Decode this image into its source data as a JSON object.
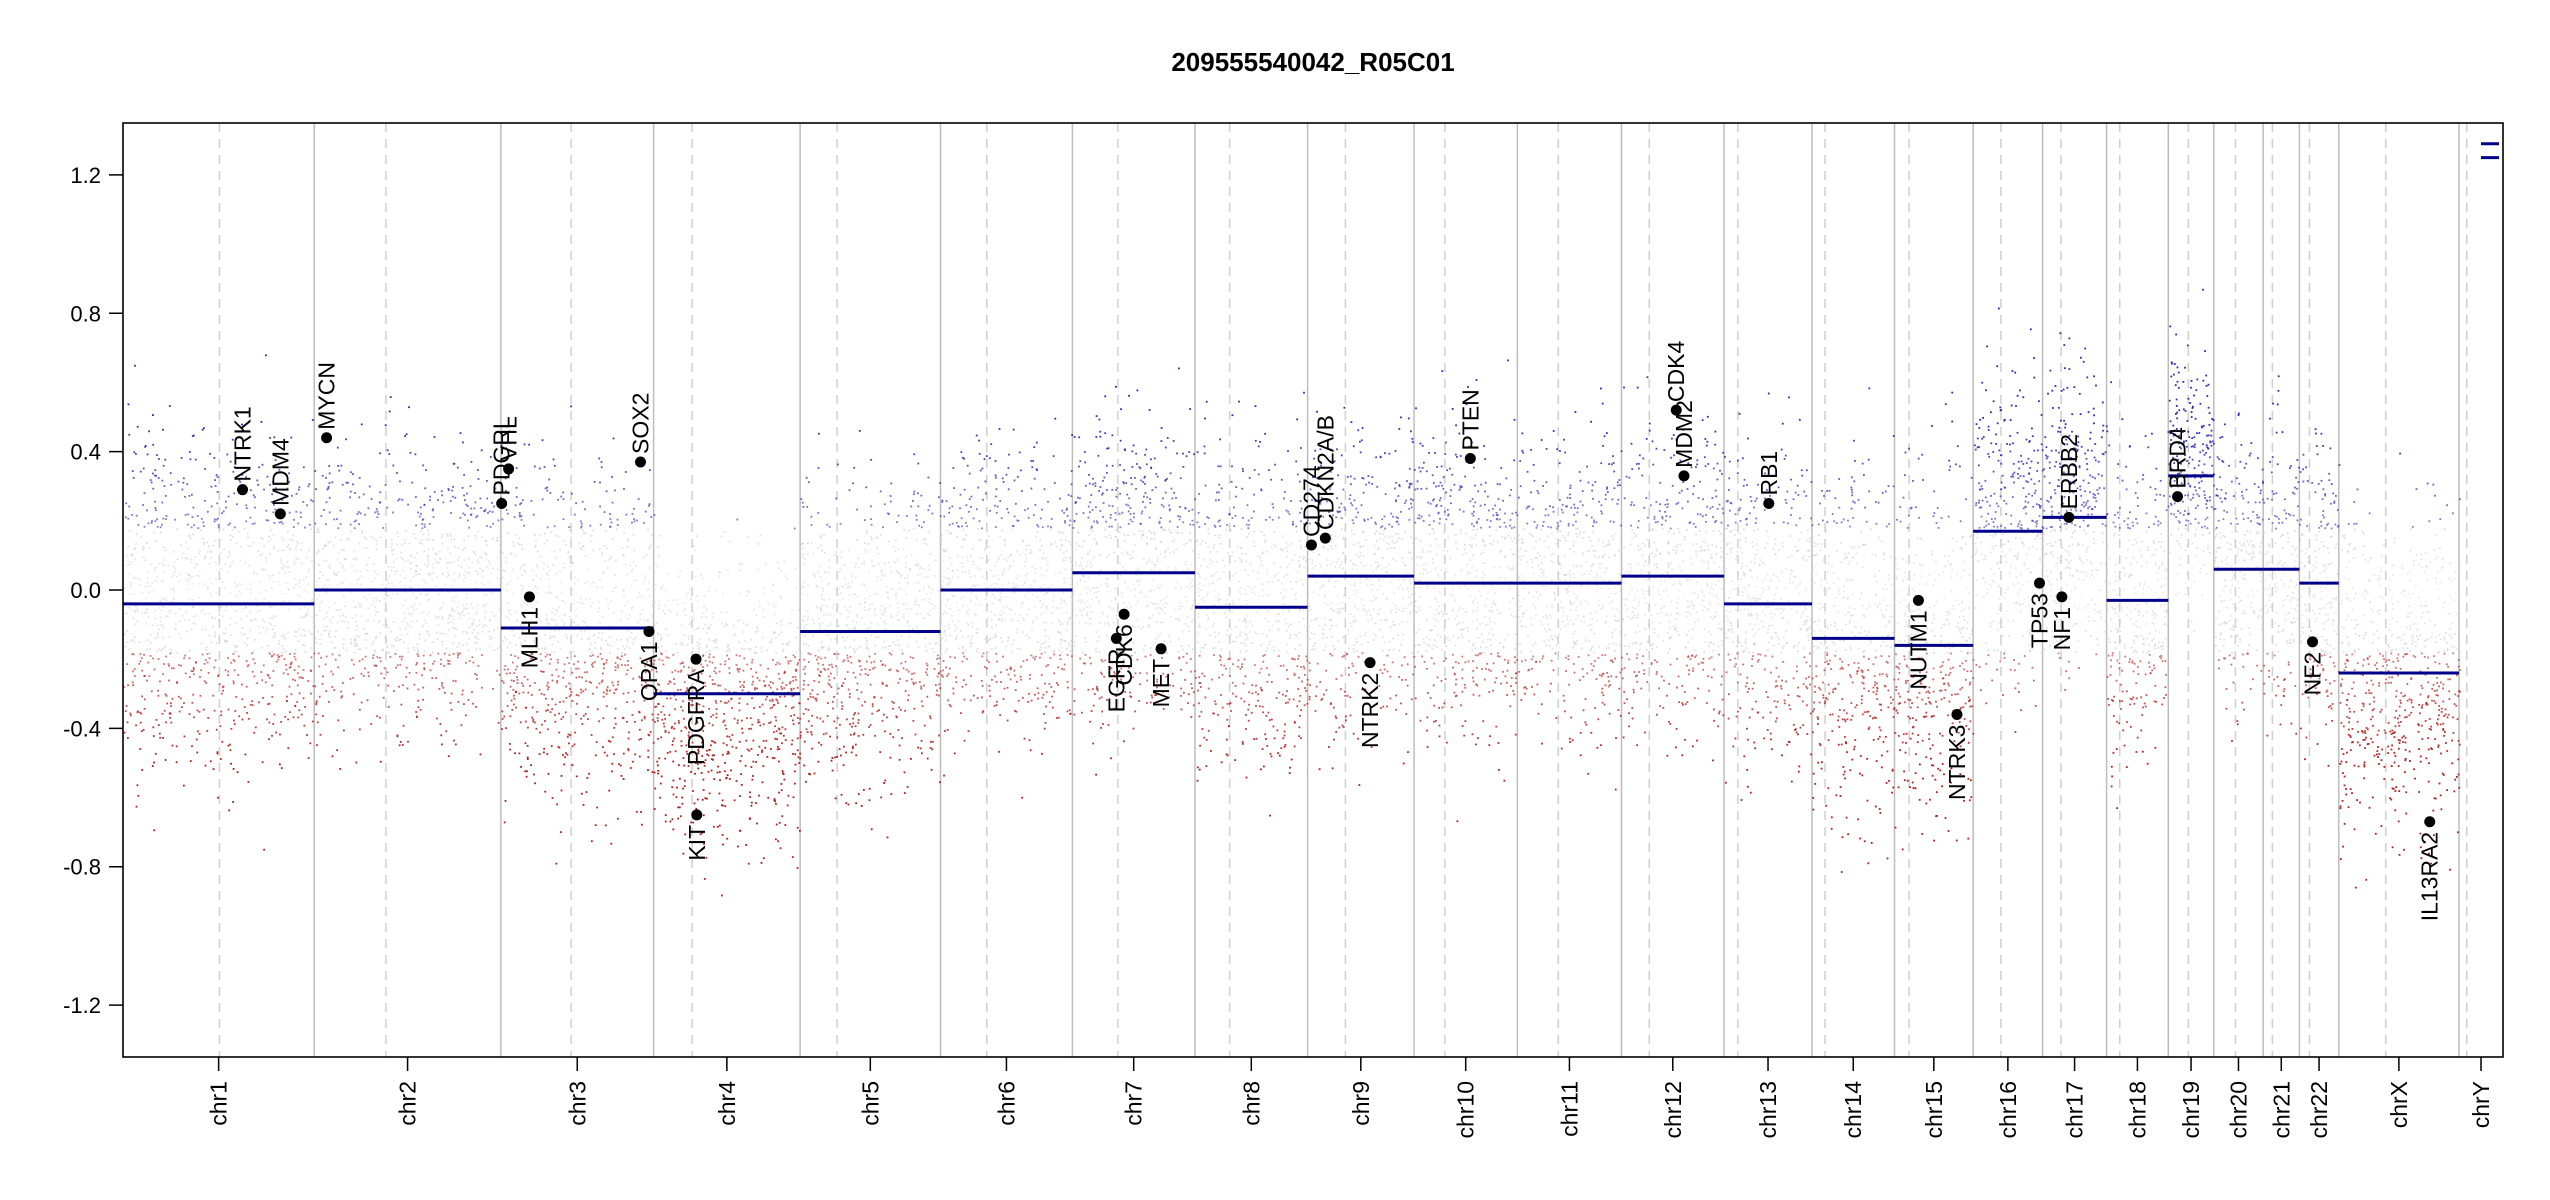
{
  "chart_data": {
    "type": "scatter",
    "title": "209555540042_R05C01",
    "xlabel": "",
    "ylabel": "",
    "ylim": [
      -1.35,
      1.35
    ],
    "yticks": [
      -1.2,
      -0.8,
      -0.4,
      0.0,
      0.4,
      0.8,
      1.2
    ],
    "ytick_labels": [
      "-1.2",
      "-0.8",
      "-0.4",
      "0.0",
      "0.4",
      "0.8",
      "1.2"
    ],
    "grid": "chromosome boundaries solid, centromeres dashed",
    "point_colors": {
      "gain": "#2b2bb0",
      "neutral": "#c8c8c8",
      "loss": "#b01e1e"
    },
    "segment_color": "#00008b",
    "chromosomes": [
      {
        "name": "chr1",
        "start": 0,
        "end": 248,
        "centromere": 125,
        "segment": -0.04,
        "noise": 0.24
      },
      {
        "name": "chr2",
        "start": 248,
        "end": 490,
        "centromere": 341,
        "segment": 0.0,
        "noise": 0.2
      },
      {
        "name": "chr3",
        "start": 490,
        "end": 688,
        "centromere": 581,
        "segment": -0.11,
        "noise": 0.24
      },
      {
        "name": "chr4",
        "start": 688,
        "end": 878,
        "centromere": 738,
        "segment": -0.3,
        "noise": 0.22
      },
      {
        "name": "chr5",
        "start": 878,
        "end": 1060,
        "centromere": 926,
        "segment": -0.12,
        "noise": 0.22
      },
      {
        "name": "chr6",
        "start": 1060,
        "end": 1231,
        "centromere": 1120,
        "segment": 0.0,
        "noise": 0.2
      },
      {
        "name": "chr7",
        "start": 1231,
        "end": 1390,
        "centromere": 1290,
        "segment": 0.05,
        "noise": 0.22
      },
      {
        "name": "chr8",
        "start": 1390,
        "end": 1536,
        "centromere": 1435,
        "segment": -0.05,
        "noise": 0.22
      },
      {
        "name": "chr9",
        "start": 1536,
        "end": 1674,
        "centromere": 1585,
        "segment": 0.04,
        "noise": 0.22
      },
      {
        "name": "chr10",
        "start": 1674,
        "end": 1808,
        "centromere": 1714,
        "segment": 0.02,
        "noise": 0.22
      },
      {
        "name": "chr11",
        "start": 1808,
        "end": 1943,
        "centromere": 1861,
        "segment": 0.02,
        "noise": 0.2
      },
      {
        "name": "chr12",
        "start": 1943,
        "end": 2076,
        "centromere": 1979,
        "segment": 0.04,
        "noise": 0.22
      },
      {
        "name": "chr13",
        "start": 2076,
        "end": 2190,
        "centromere": 2094,
        "segment": -0.04,
        "noise": 0.22
      },
      {
        "name": "chr14",
        "start": 2190,
        "end": 2297,
        "centromere": 2207,
        "segment": -0.14,
        "noise": 0.26
      },
      {
        "name": "chr15",
        "start": 2297,
        "end": 2399,
        "centromere": 2316,
        "segment": -0.16,
        "noise": 0.26
      },
      {
        "name": "chr16",
        "start": 2399,
        "end": 2489,
        "centromere": 2435,
        "segment": 0.17,
        "noise": 0.22
      },
      {
        "name": "chr17",
        "start": 2489,
        "end": 2572,
        "centromere": 2513,
        "segment": 0.21,
        "noise": 0.22
      },
      {
        "name": "chr18",
        "start": 2572,
        "end": 2652,
        "centromere": 2589,
        "segment": -0.03,
        "noise": 0.22
      },
      {
        "name": "chr19",
        "start": 2652,
        "end": 2711,
        "centromere": 2678,
        "segment": 0.33,
        "noise": 0.18
      },
      {
        "name": "chr20",
        "start": 2711,
        "end": 2775,
        "centromere": 2739,
        "segment": 0.06,
        "noise": 0.2
      },
      {
        "name": "chr21",
        "start": 2775,
        "end": 2822,
        "centromere": 2787,
        "segment": 0.06,
        "noise": 0.2
      },
      {
        "name": "chr22",
        "start": 2822,
        "end": 2873,
        "centromere": 2835,
        "segment": 0.02,
        "noise": 0.22
      },
      {
        "name": "chrX",
        "start": 2873,
        "end": 3029,
        "centromere": 2934,
        "segment": -0.24,
        "noise": 0.24
      },
      {
        "name": "chrY",
        "start": 3029,
        "end": 3086,
        "centromere": 3039,
        "segment": 1.27,
        "noise": 0.0
      }
    ],
    "genes": [
      {
        "name": "NTRK1",
        "x": 155,
        "y": 0.29
      },
      {
        "name": "MDM4",
        "x": 204,
        "y": 0.22
      },
      {
        "name": "MYCN",
        "x": 264,
        "y": 0.44
      },
      {
        "name": "PDGRL",
        "x": 491,
        "y": 0.25
      },
      {
        "name": "VHL",
        "x": 500,
        "y": 0.35
      },
      {
        "name": "MLH1",
        "x": 527,
        "y": -0.02
      },
      {
        "name": "SOX2",
        "x": 671,
        "y": 0.37
      },
      {
        "name": "OPA1",
        "x": 682,
        "y": -0.12
      },
      {
        "name": "PDGFRA",
        "x": 743,
        "y": -0.2
      },
      {
        "name": "KIT",
        "x": 744,
        "y": -0.65
      },
      {
        "name": "EGFR",
        "x": 1288,
        "y": -0.14
      },
      {
        "name": "CDK6",
        "x": 1298,
        "y": -0.07
      },
      {
        "name": "MET",
        "x": 1346,
        "y": -0.17
      },
      {
        "name": "CD274",
        "x": 1541,
        "y": 0.13
      },
      {
        "name": "CDKN2A/B",
        "x": 1559,
        "y": 0.15
      },
      {
        "name": "NTRK2",
        "x": 1617,
        "y": -0.21
      },
      {
        "name": "PTEN",
        "x": 1747,
        "y": 0.38
      },
      {
        "name": "CDK4",
        "x": 2014,
        "y": 0.52
      },
      {
        "name": "MDM2",
        "x": 2024,
        "y": 0.33
      },
      {
        "name": "RB1",
        "x": 2134,
        "y": 0.25
      },
      {
        "name": "NUTM1",
        "x": 2328,
        "y": -0.03
      },
      {
        "name": "NTRK3",
        "x": 2378,
        "y": -0.36
      },
      {
        "name": "TP53",
        "x": 2485,
        "y": 0.02
      },
      {
        "name": "NF1",
        "x": 2514,
        "y": -0.02
      },
      {
        "name": "ERBB2",
        "x": 2523,
        "y": 0.21
      },
      {
        "name": "BRD4",
        "x": 2664,
        "y": 0.27
      },
      {
        "name": "NF2",
        "x": 2839,
        "y": -0.15
      },
      {
        "name": "IL13RA2",
        "x": 2991,
        "y": -0.67
      }
    ]
  }
}
